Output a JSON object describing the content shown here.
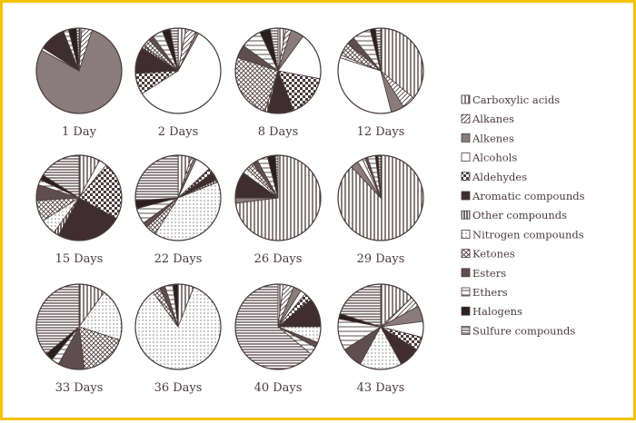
{
  "colors": {
    "ink": "#4a3b3c",
    "border": "#f2c400",
    "background": "#ffffff"
  },
  "chart_data": {
    "type": "pie",
    "title": "",
    "legend_position": "right",
    "categories": [
      "Carboxylic acids",
      "Alkanes",
      "Alkenes",
      "Alcohols",
      "Aldehydes",
      "Aromatic compounds",
      "Other compounds",
      "Nitrogen compounds",
      "Ketones",
      "Esters",
      "Ethers",
      "Halogens",
      "Sulfure compounds"
    ],
    "category_patterns": [
      "vertical-lines",
      "diagonal-lines",
      "solid-gray",
      "solid-white",
      "diamond-checker",
      "solid-dark",
      "dense-vertical",
      "dots",
      "crosshatch",
      "solid-mid",
      "horizontal-lines-light",
      "solid-black",
      "horizontal-lines"
    ],
    "pies": [
      {
        "label": "1 Day",
        "values": [
          1,
          4,
          78,
          1,
          0,
          10,
          0,
          0,
          0,
          0,
          2,
          3,
          1
        ]
      },
      {
        "label": "2 Days",
        "values": [
          3,
          4,
          1,
          58,
          8,
          10,
          1,
          0,
          3,
          2,
          4,
          3,
          3
        ]
      },
      {
        "label": "8 Days",
        "values": [
          3,
          2,
          5,
          18,
          16,
          10,
          1,
          0,
          25,
          5,
          8,
          4,
          3
        ]
      },
      {
        "label": "12 Days",
        "values": [
          36,
          5,
          5,
          34,
          0,
          0,
          0,
          1,
          5,
          3,
          7,
          2,
          2
        ]
      },
      {
        "label": "15 Days",
        "values": [
          8,
          0,
          0,
          3,
          22,
          25,
          2,
          6,
          8,
          6,
          2,
          2,
          16
        ]
      },
      {
        "label": "22 Days",
        "values": [
          5,
          1,
          1,
          6,
          2,
          3,
          1,
          40,
          4,
          2,
          6,
          3,
          26
        ]
      },
      {
        "label": "26 Days",
        "values": [
          73,
          0,
          2,
          0,
          0,
          10,
          0,
          2,
          3,
          2,
          4,
          3,
          1
        ]
      },
      {
        "label": "29 Days",
        "values": [
          88,
          0,
          3,
          2,
          0,
          0,
          0,
          1,
          0,
          1,
          3,
          1,
          1
        ]
      },
      {
        "label": "33 Days",
        "values": [
          10,
          0,
          0,
          0,
          0,
          0,
          0,
          20,
          18,
          10,
          3,
          3,
          36
        ]
      },
      {
        "label": "36 Days",
        "values": [
          6,
          0,
          0,
          0,
          0,
          0,
          0,
          84,
          3,
          2,
          3,
          2,
          0
        ]
      },
      {
        "label": "40 Days",
        "values": [
          2,
          4,
          3,
          2,
          3,
          11,
          0,
          6,
          0,
          2,
          3,
          0,
          64
        ]
      },
      {
        "label": "43 Days",
        "values": [
          13,
          4,
          6,
          6,
          5,
          8,
          0,
          16,
          0,
          8,
          12,
          2,
          20
        ]
      }
    ]
  }
}
